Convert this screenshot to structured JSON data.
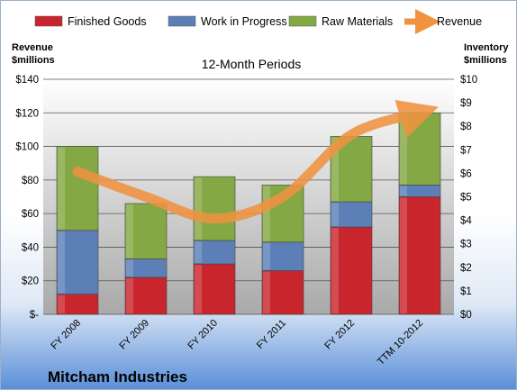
{
  "company": "Mitcham Industries",
  "chart_data": {
    "type": "bar",
    "title": "12-Month Periods",
    "categories": [
      "FY 2008",
      "FY 2009",
      "FY 2010",
      "FY 2011",
      "FY 2012",
      "TTM 10-2012"
    ],
    "series": [
      {
        "name": "Finished Goods",
        "values": [
          12,
          22,
          30,
          26,
          52,
          70
        ],
        "color": "#c8252c"
      },
      {
        "name": "Work in Progress",
        "values": [
          38,
          11,
          14,
          17,
          15,
          7
        ],
        "color": "#5b7fb6"
      },
      {
        "name": "Raw Materials",
        "values": [
          50,
          33,
          38,
          34,
          39,
          43
        ],
        "color": "#84a843"
      }
    ],
    "line_series": {
      "name": "Revenue",
      "values": [
        85,
        70,
        57,
        70,
        107,
        120
      ],
      "color": "#f09340"
    },
    "ylabel_left": "Revenue\n$millions",
    "ylabel_right": "Inventory\n$millions",
    "ylim_left": [
      0,
      140
    ],
    "ylim_right": [
      0,
      10
    ],
    "yticks_left": [
      "$-",
      "$20",
      "$40",
      "$60",
      "$80",
      "$100",
      "$120",
      "$140"
    ],
    "yticks_right": [
      "$0",
      "$1",
      "$2",
      "$3",
      "$4",
      "$5",
      "$6",
      "$7",
      "$8",
      "$9",
      "$10"
    ],
    "legend_position": "top",
    "grid": true
  }
}
